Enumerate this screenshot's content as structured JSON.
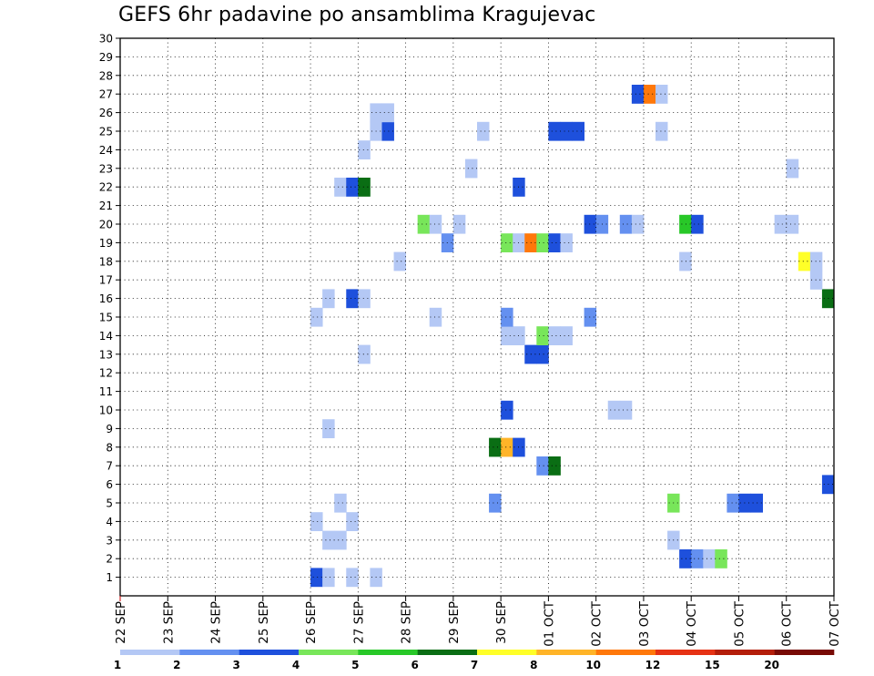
{
  "chart_data": {
    "type": "heatmap",
    "title": "GEFS 6hr padavine po ansamblima Kragujevac",
    "xlabel": "",
    "ylabel": "",
    "x_ticks": [
      "22 SEP",
      "23 SEP",
      "24 SEP",
      "25 SEP",
      "26 SEP",
      "27 SEP",
      "28 SEP",
      "29 SEP",
      "30 SEP",
      "01 OCT",
      "02 OCT",
      "03 OCT",
      "04 OCT",
      "05 OCT",
      "06 OCT",
      "07 OCT"
    ],
    "y_ticks": [
      1,
      2,
      3,
      4,
      5,
      6,
      7,
      8,
      9,
      10,
      11,
      12,
      13,
      14,
      15,
      16,
      17,
      18,
      19,
      20,
      21,
      22,
      23,
      24,
      25,
      26,
      27,
      28,
      29,
      30
    ],
    "ylim": [
      0,
      30
    ],
    "steps_per_day": 4,
    "grid": true,
    "legend": {
      "placement": "bottom",
      "labels": [
        "1",
        "2",
        "3",
        "4",
        "5",
        "6",
        "7",
        "8",
        "10",
        "12",
        "15",
        "20"
      ],
      "colors": [
        "#b4c8f5",
        "#6490f0",
        "#1e50dc",
        "#78e65a",
        "#28c828",
        "#0a6e14",
        "#ffff28",
        "#ffb428",
        "#ff780a",
        "#e63214",
        "#b41e0a",
        "#780a05"
      ]
    },
    "cells": [
      {
        "member": 1,
        "time": "2025-09-26T00",
        "level": 3
      },
      {
        "member": 1,
        "time": "2025-09-26T06",
        "level": 1
      },
      {
        "member": 1,
        "time": "2025-09-26T18",
        "level": 1
      },
      {
        "member": 1,
        "time": "2025-09-27T06",
        "level": 1
      },
      {
        "member": 2,
        "time": "2025-10-03T18",
        "level": 3
      },
      {
        "member": 2,
        "time": "2025-10-04T00",
        "level": 2
      },
      {
        "member": 2,
        "time": "2025-10-04T06",
        "level": 1
      },
      {
        "member": 2,
        "time": "2025-10-04T12",
        "level": 4
      },
      {
        "member": 3,
        "time": "2025-09-26T06",
        "level": 1
      },
      {
        "member": 3,
        "time": "2025-09-26T12",
        "level": 1
      },
      {
        "member": 3,
        "time": "2025-10-03T12",
        "level": 1
      },
      {
        "member": 4,
        "time": "2025-09-26T00",
        "level": 1
      },
      {
        "member": 4,
        "time": "2025-09-26T18",
        "level": 1
      },
      {
        "member": 5,
        "time": "2025-09-26T12",
        "level": 1
      },
      {
        "member": 5,
        "time": "2025-09-29T18",
        "level": 2
      },
      {
        "member": 5,
        "time": "2025-10-03T12",
        "level": 4
      },
      {
        "member": 5,
        "time": "2025-10-04T18",
        "level": 2
      },
      {
        "member": 5,
        "time": "2025-10-05T00",
        "level": 3
      },
      {
        "member": 5,
        "time": "2025-10-05T06",
        "level": 3
      },
      {
        "member": 6,
        "time": "2025-10-06T18",
        "level": 3
      },
      {
        "member": 7,
        "time": "2025-09-30T18",
        "level": 2
      },
      {
        "member": 7,
        "time": "2025-10-01T00",
        "level": 6
      },
      {
        "member": 8,
        "time": "2025-09-29T18",
        "level": 6
      },
      {
        "member": 8,
        "time": "2025-09-30T00",
        "level": 8
      },
      {
        "member": 8,
        "time": "2025-09-30T06",
        "level": 3
      },
      {
        "member": 9,
        "time": "2025-09-26T06",
        "level": 1
      },
      {
        "member": 10,
        "time": "2025-09-30T00",
        "level": 3
      },
      {
        "member": 10,
        "time": "2025-10-02T06",
        "level": 1
      },
      {
        "member": 10,
        "time": "2025-10-02T12",
        "level": 1
      },
      {
        "member": 13,
        "time": "2025-09-27T00",
        "level": 1
      },
      {
        "member": 13,
        "time": "2025-09-30T12",
        "level": 3
      },
      {
        "member": 13,
        "time": "2025-09-30T18",
        "level": 3
      },
      {
        "member": 14,
        "time": "2025-09-30T00",
        "level": 1
      },
      {
        "member": 14,
        "time": "2025-09-30T06",
        "level": 1
      },
      {
        "member": 14,
        "time": "2025-09-30T18",
        "level": 4
      },
      {
        "member": 14,
        "time": "2025-10-01T00",
        "level": 1
      },
      {
        "member": 14,
        "time": "2025-10-01T06",
        "level": 1
      },
      {
        "member": 15,
        "time": "2025-09-26T00",
        "level": 1
      },
      {
        "member": 15,
        "time": "2025-09-28T12",
        "level": 1
      },
      {
        "member": 15,
        "time": "2025-09-30T00",
        "level": 2
      },
      {
        "member": 15,
        "time": "2025-10-01T18",
        "level": 2
      },
      {
        "member": 16,
        "time": "2025-09-26T06",
        "level": 1
      },
      {
        "member": 16,
        "time": "2025-09-26T18",
        "level": 3
      },
      {
        "member": 16,
        "time": "2025-09-27T00",
        "level": 1
      },
      {
        "member": 16,
        "time": "2025-10-06T18",
        "level": 6
      },
      {
        "member": 17,
        "time": "2025-10-06T12",
        "level": 1
      },
      {
        "member": 18,
        "time": "2025-09-27T18",
        "level": 1
      },
      {
        "member": 18,
        "time": "2025-10-03T18",
        "level": 1
      },
      {
        "member": 18,
        "time": "2025-10-06T06",
        "level": 7
      },
      {
        "member": 18,
        "time": "2025-10-06T12",
        "level": 1
      },
      {
        "member": 19,
        "time": "2025-09-28T18",
        "level": 2
      },
      {
        "member": 19,
        "time": "2025-09-30T00",
        "level": 4
      },
      {
        "member": 19,
        "time": "2025-09-30T06",
        "level": 1
      },
      {
        "member": 19,
        "time": "2025-09-30T12",
        "level": 9
      },
      {
        "member": 19,
        "time": "2025-09-30T18",
        "level": 4
      },
      {
        "member": 19,
        "time": "2025-10-01T00",
        "level": 3
      },
      {
        "member": 19,
        "time": "2025-10-01T06",
        "level": 1
      },
      {
        "member": 20,
        "time": "2025-09-28T06",
        "level": 4
      },
      {
        "member": 20,
        "time": "2025-09-28T12",
        "level": 1
      },
      {
        "member": 20,
        "time": "2025-09-29T00",
        "level": 1
      },
      {
        "member": 20,
        "time": "2025-10-01T18",
        "level": 3
      },
      {
        "member": 20,
        "time": "2025-10-02T00",
        "level": 2
      },
      {
        "member": 20,
        "time": "2025-10-02T12",
        "level": 2
      },
      {
        "member": 20,
        "time": "2025-10-02T18",
        "level": 1
      },
      {
        "member": 20,
        "time": "2025-10-03T18",
        "level": 5
      },
      {
        "member": 20,
        "time": "2025-10-04T00",
        "level": 3
      },
      {
        "member": 20,
        "time": "2025-10-05T18",
        "level": 1
      },
      {
        "member": 20,
        "time": "2025-10-06T00",
        "level": 1
      },
      {
        "member": 22,
        "time": "2025-09-26T12",
        "level": 1
      },
      {
        "member": 22,
        "time": "2025-09-26T18",
        "level": 3
      },
      {
        "member": 22,
        "time": "2025-09-27T00",
        "level": 6
      },
      {
        "member": 22,
        "time": "2025-09-30T06",
        "level": 3
      },
      {
        "member": 23,
        "time": "2025-09-29T06",
        "level": 1
      },
      {
        "member": 23,
        "time": "2025-10-06T00",
        "level": 1
      },
      {
        "member": 24,
        "time": "2025-09-27T00",
        "level": 1
      },
      {
        "member": 25,
        "time": "2025-09-27T06",
        "level": 1
      },
      {
        "member": 25,
        "time": "2025-09-27T12",
        "level": 3
      },
      {
        "member": 25,
        "time": "2025-09-29T12",
        "level": 1
      },
      {
        "member": 25,
        "time": "2025-10-01T00",
        "level": 3
      },
      {
        "member": 25,
        "time": "2025-10-01T06",
        "level": 3
      },
      {
        "member": 25,
        "time": "2025-10-01T12",
        "level": 3
      },
      {
        "member": 25,
        "time": "2025-10-03T06",
        "level": 1
      },
      {
        "member": 26,
        "time": "2025-09-27T06",
        "level": 1
      },
      {
        "member": 26,
        "time": "2025-09-27T12",
        "level": 1
      },
      {
        "member": 27,
        "time": "2025-10-02T18",
        "level": 3
      },
      {
        "member": 27,
        "time": "2025-10-03T00",
        "level": 9
      },
      {
        "member": 27,
        "time": "2025-10-03T06",
        "level": 1
      }
    ]
  }
}
